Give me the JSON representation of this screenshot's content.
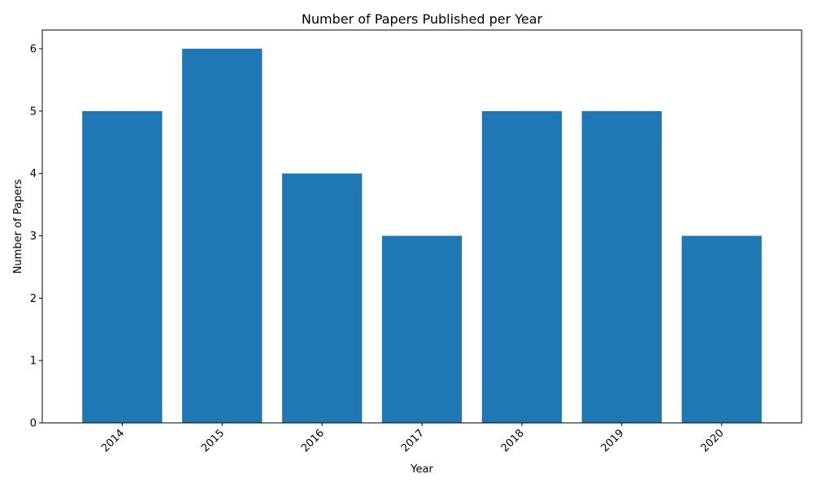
{
  "chart_data": {
    "type": "bar",
    "title": "Number of Papers Published per Year",
    "xlabel": "Year",
    "ylabel": "Number of Papers",
    "categories": [
      "2014",
      "2015",
      "2016",
      "2017",
      "2018",
      "2019",
      "2020"
    ],
    "values": [
      5,
      6,
      4,
      3,
      5,
      5,
      3
    ],
    "ylim": [
      0,
      6.3
    ],
    "yticks": [
      "0",
      "1",
      "2",
      "3",
      "4",
      "5",
      "6"
    ],
    "bar_color": "#1f77b4",
    "grid": false,
    "legend": "none"
  }
}
